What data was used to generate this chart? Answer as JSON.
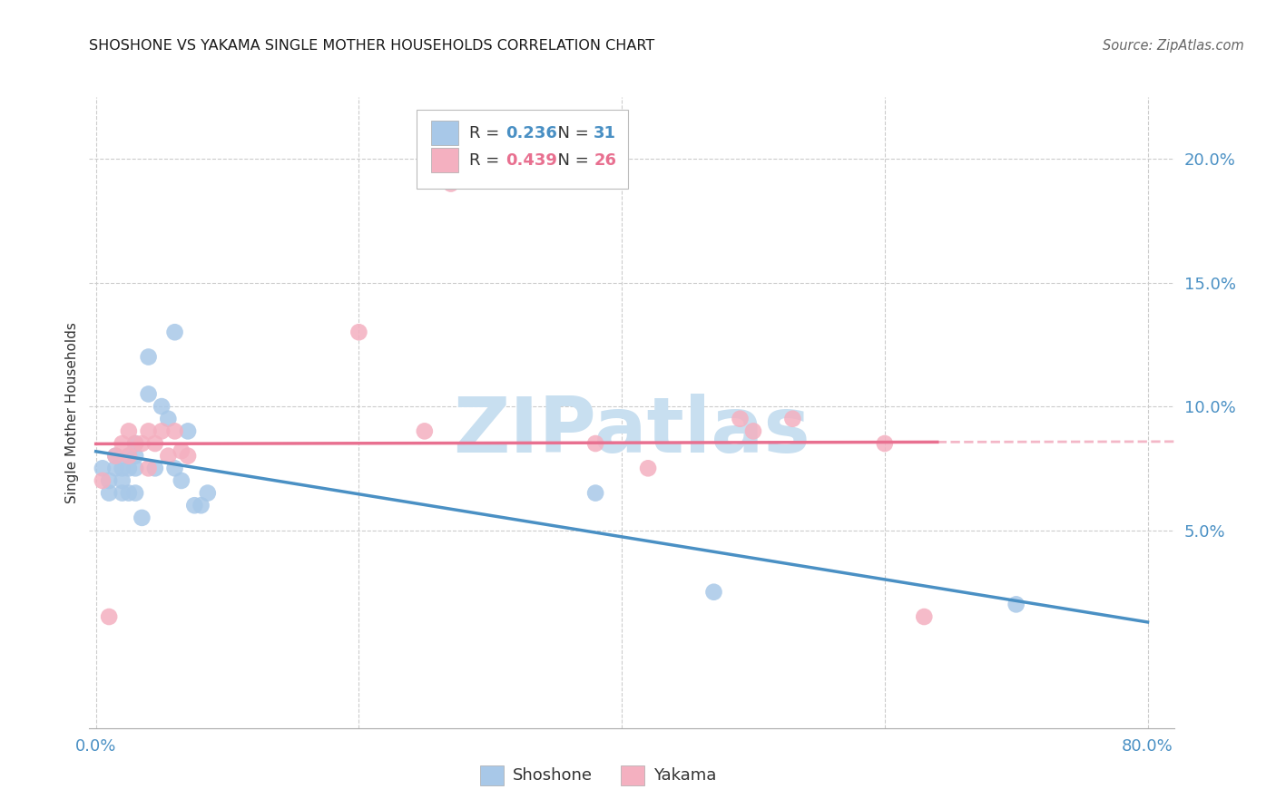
{
  "title": "SHOSHONE VS YAKAMA SINGLE MOTHER HOUSEHOLDS CORRELATION CHART",
  "source": "Source: ZipAtlas.com",
  "ylabel": "Single Mother Households",
  "xlim": [
    -0.005,
    0.82
  ],
  "ylim": [
    -0.03,
    0.225
  ],
  "xtick_vals": [
    0.0,
    0.2,
    0.4,
    0.6,
    0.8
  ],
  "xticklabels": [
    "0.0%",
    "",
    "",
    "",
    "80.0%"
  ],
  "ytick_vals": [
    0.05,
    0.1,
    0.15,
    0.2
  ],
  "yticklabels": [
    "5.0%",
    "10.0%",
    "15.0%",
    "20.0%"
  ],
  "shoshone_color": "#a8c8e8",
  "yakama_color": "#f4b0c0",
  "shoshone_line_color": "#4a90c4",
  "yakama_line_color": "#e87090",
  "background_color": "#ffffff",
  "grid_color": "#cccccc",
  "legend_R_shoshone": "0.236",
  "legend_N_shoshone": "31",
  "legend_R_yakama": "0.439",
  "legend_N_yakama": "26",
  "watermark": "ZIPatlas",
  "watermark_color": "#c8dff0",
  "shoshone_x": [
    0.005,
    0.01,
    0.01,
    0.015,
    0.015,
    0.02,
    0.02,
    0.02,
    0.025,
    0.025,
    0.025,
    0.03,
    0.03,
    0.03,
    0.03,
    0.035,
    0.04,
    0.04,
    0.045,
    0.05,
    0.055,
    0.06,
    0.06,
    0.065,
    0.07,
    0.075,
    0.08,
    0.085,
    0.38,
    0.47,
    0.7
  ],
  "shoshone_y": [
    0.075,
    0.07,
    0.065,
    0.08,
    0.075,
    0.075,
    0.07,
    0.065,
    0.08,
    0.075,
    0.065,
    0.085,
    0.08,
    0.075,
    0.065,
    0.055,
    0.12,
    0.105,
    0.075,
    0.1,
    0.095,
    0.13,
    0.075,
    0.07,
    0.09,
    0.06,
    0.06,
    0.065,
    0.065,
    0.025,
    0.02
  ],
  "yakama_x": [
    0.005,
    0.01,
    0.015,
    0.02,
    0.025,
    0.025,
    0.03,
    0.035,
    0.04,
    0.04,
    0.045,
    0.05,
    0.055,
    0.06,
    0.065,
    0.07,
    0.2,
    0.25,
    0.27,
    0.38,
    0.42,
    0.49,
    0.5,
    0.53,
    0.6,
    0.63
  ],
  "yakama_y": [
    0.07,
    0.015,
    0.08,
    0.085,
    0.09,
    0.08,
    0.085,
    0.085,
    0.09,
    0.075,
    0.085,
    0.09,
    0.08,
    0.09,
    0.082,
    0.08,
    0.13,
    0.09,
    0.19,
    0.085,
    0.075,
    0.095,
    0.09,
    0.095,
    0.085,
    0.015
  ]
}
